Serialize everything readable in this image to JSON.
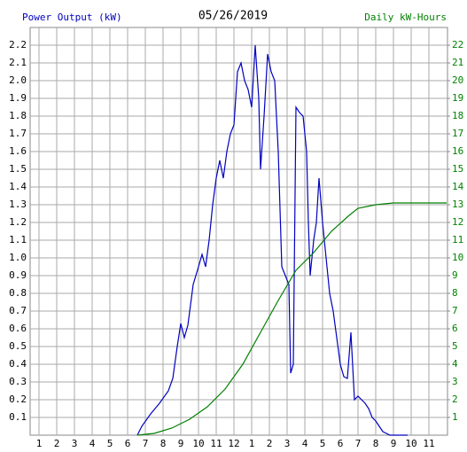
{
  "chart_data": {
    "type": "line",
    "title": "05/26/2019",
    "y_label": "Power Output (kW)",
    "y2_label": "Daily kW-Hours",
    "xlim": [
      0.5,
      24.05
    ],
    "xticks": [
      1,
      2,
      3,
      4,
      5,
      6,
      7,
      8,
      9,
      10,
      11,
      12,
      {
        "value": 13,
        "label": "1"
      },
      {
        "value": 14,
        "label": "2"
      },
      {
        "value": 15,
        "label": "3"
      },
      {
        "value": 16,
        "label": "4"
      },
      {
        "value": 17,
        "label": "5"
      },
      {
        "value": 18,
        "label": "6"
      },
      {
        "value": 19,
        "label": "7"
      },
      {
        "value": 20,
        "label": "8"
      },
      {
        "value": 21,
        "label": "9"
      },
      {
        "value": 22,
        "label": "10"
      },
      {
        "value": 23,
        "label": "11"
      }
    ],
    "ylim": [
      0,
      2.3
    ],
    "yticks": [
      0.1,
      0.2,
      0.3,
      0.4,
      0.5,
      0.6,
      0.7,
      0.8,
      0.9,
      {
        "value": 1,
        "label": "1.0"
      },
      1.1,
      1.2,
      1.3,
      1.4,
      1.5,
      1.6,
      1.7,
      1.8,
      1.9,
      {
        "value": 2,
        "label": "2.0"
      },
      2.1,
      2.2
    ],
    "y2lim": [
      0,
      23
    ],
    "y2ticks": [
      1,
      2,
      3,
      4,
      5,
      6,
      7,
      8,
      9,
      10,
      11,
      12,
      13,
      14,
      15,
      16,
      17,
      18,
      19,
      20,
      21,
      22
    ],
    "grid": true,
    "series": [
      {
        "name": "Power Output (kW)",
        "color": "#0000c0",
        "x": [
          6.55,
          6.8,
          7.3,
          7.8,
          8.3,
          8.55,
          8.8,
          9.0,
          9.2,
          9.4,
          9.7,
          10.0,
          10.2,
          10.4,
          10.6,
          10.8,
          11.0,
          11.2,
          11.4,
          11.6,
          11.8,
          12.0,
          12.2,
          12.4,
          12.6,
          12.8,
          13.0,
          13.2,
          13.4,
          13.5,
          13.7,
          13.9,
          14.1,
          14.3,
          14.5,
          14.7,
          14.9,
          15.1,
          15.2,
          15.35,
          15.5,
          15.7,
          15.9,
          16.1,
          16.2,
          16.3,
          16.5,
          16.65,
          16.8,
          17.0,
          17.2,
          17.4,
          17.6,
          17.8,
          18.0,
          18.2,
          18.4,
          18.6,
          18.8,
          19.0,
          19.2,
          19.4,
          19.6,
          19.8,
          20.0,
          20.2,
          20.4,
          20.6,
          20.8,
          21.8
        ],
        "values": [
          0,
          0.05,
          0.12,
          0.18,
          0.25,
          0.32,
          0.5,
          0.63,
          0.55,
          0.62,
          0.85,
          0.95,
          1.02,
          0.95,
          1.1,
          1.3,
          1.45,
          1.55,
          1.45,
          1.6,
          1.7,
          1.75,
          2.05,
          2.1,
          2.0,
          1.95,
          1.85,
          2.2,
          1.9,
          1.5,
          1.8,
          2.15,
          2.05,
          2.0,
          1.6,
          0.95,
          0.9,
          0.85,
          0.35,
          0.4,
          1.85,
          1.82,
          1.8,
          1.6,
          1.2,
          0.9,
          1.1,
          1.2,
          1.45,
          1.2,
          1.0,
          0.8,
          0.7,
          0.55,
          0.4,
          0.33,
          0.32,
          0.58,
          0.2,
          0.22,
          0.2,
          0.18,
          0.15,
          0.1,
          0.08,
          0.05,
          0.02,
          0.01,
          0,
          0
        ]
      },
      {
        "name": "Daily kW-Hours",
        "color": "#008000",
        "axis": "y2",
        "x": [
          6.55,
          7.5,
          8.5,
          9.5,
          10.5,
          11.5,
          12.5,
          13.5,
          14.5,
          15.5,
          16.5,
          17.5,
          18.5,
          19.0,
          20.0,
          21.0,
          22.0,
          23.0,
          24.0
        ],
        "values": [
          0,
          0.1,
          0.4,
          0.9,
          1.6,
          2.6,
          4.0,
          5.8,
          7.6,
          9.3,
          10.3,
          11.5,
          12.4,
          12.8,
          13.0,
          13.1,
          13.1,
          13.1,
          13.1
        ]
      }
    ]
  }
}
